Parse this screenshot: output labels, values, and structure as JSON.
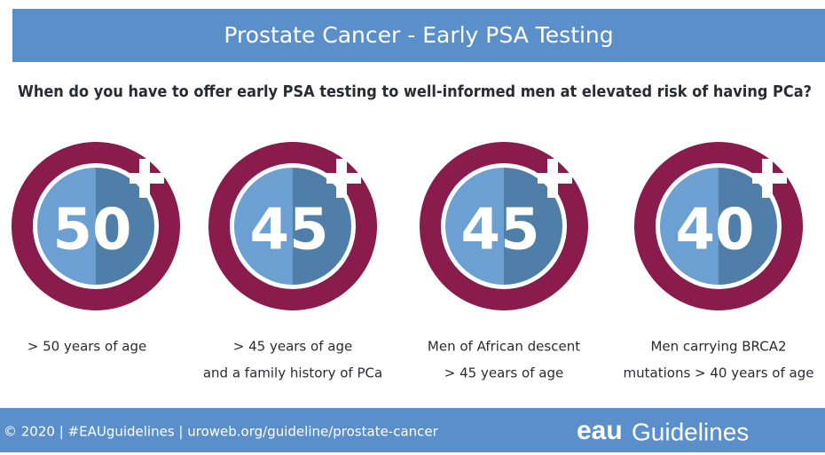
{
  "header": {
    "title": "Prostate Cancer - Early PSA Testing"
  },
  "question": "When do you have to offer early PSA testing to well-informed men at elevated risk of having PCa?",
  "items": [
    {
      "number": 50,
      "caption": [
        "> 50 years of age"
      ]
    },
    {
      "number": 45,
      "caption": [
        "> 45 years of age",
        "and a family history of PCa"
      ]
    },
    {
      "number": 45,
      "caption": [
        "Men of African descent",
        "> 45 years of age"
      ]
    },
    {
      "number": 40,
      "caption": [
        "Men carrying BRCA2",
        "mutations > 40 years of age"
      ]
    }
  ],
  "footer": {
    "text": "© 2020 | #EAUguidelines | uroweb.org/guideline/prostate-cancer",
    "logo": "eau",
    "brand": "Guidelines"
  }
}
